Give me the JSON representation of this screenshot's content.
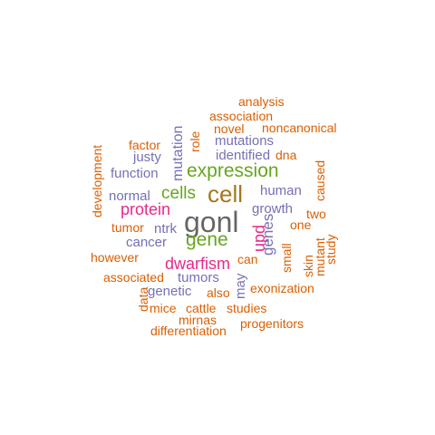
{
  "palette": {
    "orange": "#d95f02",
    "purple": "#7570b3",
    "magenta": "#e7298a",
    "green": "#66a61e",
    "olive": "#a6761d",
    "gray": "#666666"
  },
  "words": [
    {
      "text": "gonl",
      "color": "#666666"
    },
    {
      "text": "cell",
      "color": "#a6761d"
    },
    {
      "text": "expression",
      "color": "#66a61e"
    },
    {
      "text": "cells",
      "color": "#66a61e"
    },
    {
      "text": "gene",
      "color": "#66a61e"
    },
    {
      "text": "dwarfism",
      "color": "#e7298a"
    },
    {
      "text": "protein",
      "color": "#e7298a"
    },
    {
      "text": "upd",
      "color": "#e7298a"
    },
    {
      "text": "genes",
      "color": "#7570b3"
    },
    {
      "text": "mutation",
      "color": "#7570b3"
    },
    {
      "text": "mutations",
      "color": "#7570b3"
    },
    {
      "text": "identified",
      "color": "#7570b3"
    },
    {
      "text": "human",
      "color": "#7570b3"
    },
    {
      "text": "growth",
      "color": "#7570b3"
    },
    {
      "text": "function",
      "color": "#7570b3"
    },
    {
      "text": "justy",
      "color": "#7570b3"
    },
    {
      "text": "normal",
      "color": "#7570b3"
    },
    {
      "text": "ntrk",
      "color": "#7570b3"
    },
    {
      "text": "cancer",
      "color": "#7570b3"
    },
    {
      "text": "tumors",
      "color": "#7570b3"
    },
    {
      "text": "genetic",
      "color": "#7570b3"
    },
    {
      "text": "may",
      "color": "#7570b3"
    },
    {
      "text": "analysis",
      "color": "#d95f02"
    },
    {
      "text": "association",
      "color": "#d95f02"
    },
    {
      "text": "novel",
      "color": "#d95f02"
    },
    {
      "text": "noncanonical",
      "color": "#d95f02"
    },
    {
      "text": "factor",
      "color": "#d95f02"
    },
    {
      "text": "role",
      "color": "#d95f02"
    },
    {
      "text": "dna",
      "color": "#d95f02"
    },
    {
      "text": "development",
      "color": "#d95f02"
    },
    {
      "text": "caused",
      "color": "#d95f02"
    },
    {
      "text": "two",
      "color": "#d95f02"
    },
    {
      "text": "one",
      "color": "#d95f02"
    },
    {
      "text": "tumor",
      "color": "#d95f02"
    },
    {
      "text": "small",
      "color": "#d95f02"
    },
    {
      "text": "skin",
      "color": "#d95f02"
    },
    {
      "text": "mutant",
      "color": "#d95f02"
    },
    {
      "text": "study",
      "color": "#d95f02"
    },
    {
      "text": "however",
      "color": "#d95f02"
    },
    {
      "text": "can",
      "color": "#d95f02"
    },
    {
      "text": "associated",
      "color": "#d95f02"
    },
    {
      "text": "exonization",
      "color": "#d95f02"
    },
    {
      "text": "data",
      "color": "#d95f02"
    },
    {
      "text": "also",
      "color": "#d95f02"
    },
    {
      "text": "mice",
      "color": "#d95f02"
    },
    {
      "text": "cattle",
      "color": "#d95f02"
    },
    {
      "text": "studies",
      "color": "#d95f02"
    },
    {
      "text": "mirnas",
      "color": "#d95f02"
    },
    {
      "text": "progenitors",
      "color": "#d95f02"
    },
    {
      "text": "differentiation",
      "color": "#d95f02"
    }
  ]
}
